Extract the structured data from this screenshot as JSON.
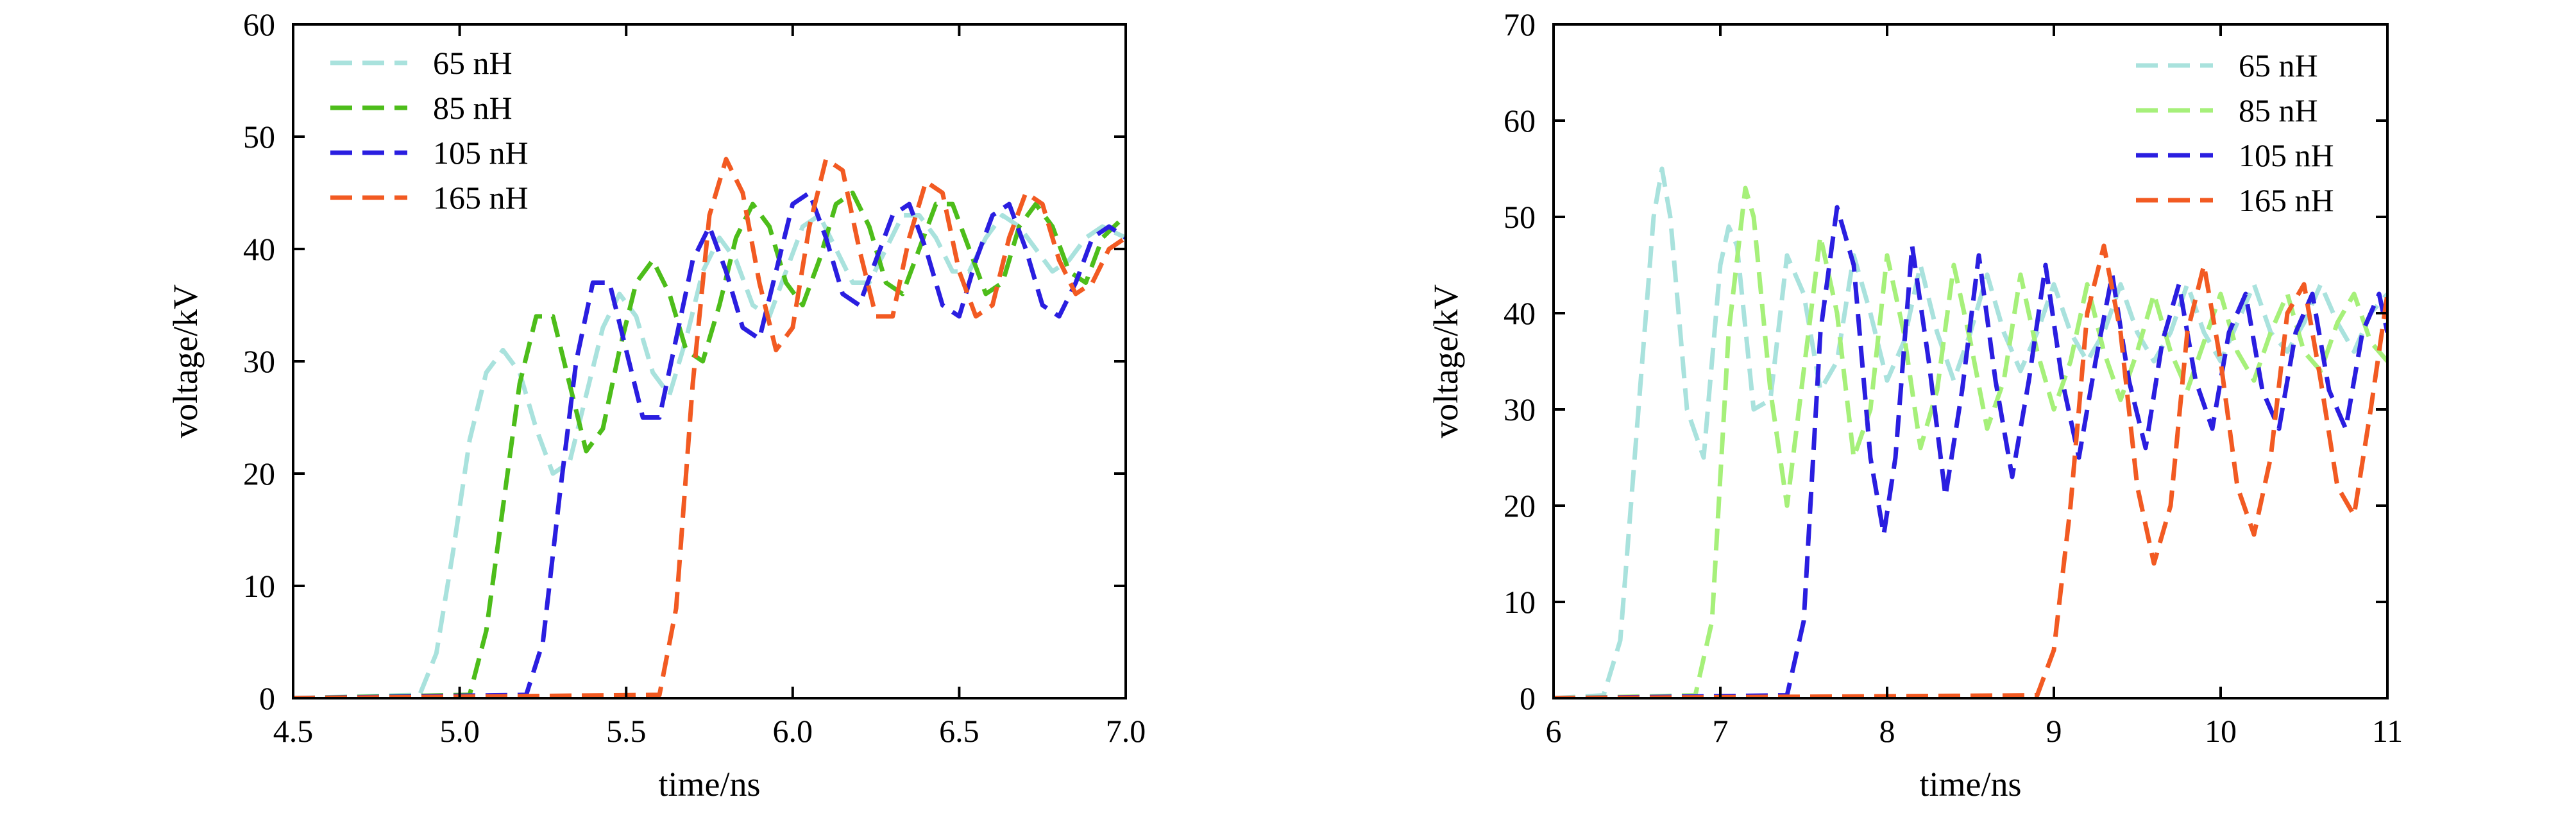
{
  "chart_data": [
    {
      "type": "line",
      "xlabel": "time/ns",
      "ylabel": "voltage/kV",
      "xlim": [
        4.5,
        7.0
      ],
      "ylim": [
        0,
        60
      ],
      "xticks": [
        "4.5",
        "5.0",
        "5.5",
        "6.0",
        "6.5",
        "7.0"
      ],
      "yticks": [
        "0",
        "10",
        "20",
        "30",
        "40",
        "50",
        "60"
      ],
      "legend_position": "top-left",
      "series": [
        {
          "name": "65 nH",
          "color": "#a9e2dd",
          "x": [
            4.5,
            4.88,
            4.93,
            4.98,
            5.03,
            5.08,
            5.13,
            5.18,
            5.23,
            5.28,
            5.33,
            5.38,
            5.43,
            5.48,
            5.53,
            5.58,
            5.63,
            5.68,
            5.73,
            5.78,
            5.83,
            5.88,
            5.93,
            5.98,
            6.03,
            6.08,
            6.13,
            6.18,
            6.23,
            6.28,
            6.33,
            6.38,
            6.43,
            6.48,
            6.53,
            6.58,
            6.63,
            6.68,
            6.73,
            6.78,
            6.83,
            6.88,
            6.93,
            7.0
          ],
          "y": [
            0,
            0.3,
            4,
            13,
            23,
            29,
            31,
            29,
            24,
            20,
            21,
            27,
            33,
            36,
            34,
            29,
            27,
            32,
            38,
            41,
            39,
            35,
            34,
            38,
            42,
            43,
            40,
            37,
            37,
            40,
            43,
            43,
            41,
            38,
            38,
            41,
            43,
            42,
            40,
            38,
            39,
            41,
            42,
            41
          ]
        },
        {
          "name": "85 nH",
          "color": "#4dbd1a",
          "x": [
            4.5,
            5.03,
            5.08,
            5.13,
            5.18,
            5.23,
            5.28,
            5.33,
            5.38,
            5.43,
            5.48,
            5.53,
            5.58,
            5.63,
            5.68,
            5.73,
            5.78,
            5.83,
            5.88,
            5.93,
            5.98,
            6.03,
            6.08,
            6.13,
            6.18,
            6.23,
            6.28,
            6.33,
            6.38,
            6.43,
            6.48,
            6.53,
            6.58,
            6.63,
            6.68,
            6.73,
            6.78,
            6.83,
            6.88,
            6.93,
            7.0
          ],
          "y": [
            0,
            0.3,
            6,
            17,
            28,
            34,
            34,
            28,
            22,
            24,
            31,
            37,
            39,
            36,
            31,
            30,
            35,
            41,
            44,
            42,
            37,
            35,
            39,
            44,
            45,
            42,
            37,
            36,
            40,
            44,
            44,
            40,
            36,
            37,
            42,
            44,
            42,
            38,
            37,
            41,
            43
          ]
        },
        {
          "name": "105 nH",
          "color": "#2a1ee0",
          "x": [
            4.5,
            5.2,
            5.25,
            5.3,
            5.35,
            5.4,
            5.45,
            5.5,
            5.55,
            5.6,
            5.65,
            5.7,
            5.75,
            5.8,
            5.85,
            5.9,
            5.95,
            6.0,
            6.05,
            6.1,
            6.15,
            6.2,
            6.25,
            6.3,
            6.35,
            6.4,
            6.45,
            6.5,
            6.55,
            6.6,
            6.65,
            6.7,
            6.75,
            6.8,
            6.85,
            6.9,
            6.95,
            7.0
          ],
          "y": [
            0,
            0.3,
            5,
            18,
            30,
            37,
            37,
            31,
            25,
            25,
            32,
            39,
            42,
            38,
            33,
            32,
            38,
            44,
            45,
            41,
            36,
            35,
            39,
            43,
            44,
            40,
            35,
            34,
            39,
            43,
            44,
            40,
            35,
            34,
            37,
            41,
            42,
            41
          ]
        },
        {
          "name": "165 nH",
          "color": "#f25a22",
          "x": [
            4.5,
            5.6,
            5.65,
            5.7,
            5.75,
            5.8,
            5.85,
            5.9,
            5.95,
            6.0,
            6.05,
            6.1,
            6.15,
            6.2,
            6.25,
            6.3,
            6.35,
            6.4,
            6.45,
            6.5,
            6.55,
            6.6,
            6.65,
            6.7,
            6.75,
            6.8,
            6.85,
            6.9,
            6.95,
            7.0
          ],
          "y": [
            0,
            0.3,
            8,
            28,
            43,
            48,
            45,
            37,
            31,
            33,
            42,
            48,
            47,
            40,
            34,
            34,
            41,
            46,
            45,
            38,
            34,
            35,
            41,
            45,
            44,
            39,
            36,
            37,
            40,
            41
          ]
        }
      ]
    },
    {
      "type": "line",
      "xlabel": "time/ns",
      "ylabel": "voltage/kV",
      "xlim": [
        6,
        11
      ],
      "ylim": [
        0,
        70
      ],
      "xticks": [
        "6",
        "7",
        "8",
        "9",
        "10",
        "11"
      ],
      "yticks": [
        "0",
        "10",
        "20",
        "30",
        "40",
        "50",
        "60",
        "70"
      ],
      "legend_position": "top-right",
      "series": [
        {
          "name": "65 nH",
          "color": "#a9e2dd",
          "x": [
            6.0,
            6.3,
            6.4,
            6.5,
            6.6,
            6.65,
            6.7,
            6.8,
            6.9,
            7.0,
            7.05,
            7.1,
            7.2,
            7.3,
            7.4,
            7.5,
            7.6,
            7.7,
            7.8,
            7.9,
            8.0,
            8.1,
            8.2,
            8.3,
            8.4,
            8.5,
            8.6,
            8.7,
            8.8,
            8.9,
            9.0,
            9.1,
            9.2,
            9.3,
            9.4,
            9.5,
            9.6,
            9.7,
            9.8,
            9.9,
            10.0,
            10.1,
            10.2,
            10.3,
            10.4,
            10.5,
            10.6,
            10.7,
            10.8,
            10.9,
            11.0
          ],
          "y": [
            0,
            0.3,
            6,
            28,
            50,
            55,
            50,
            30,
            25,
            45,
            49,
            47,
            30,
            31,
            46,
            42,
            32,
            35,
            46,
            40,
            33,
            37,
            45,
            38,
            33,
            38,
            44,
            38,
            34,
            38,
            43,
            38,
            35,
            38,
            43,
            38,
            35,
            38,
            43,
            38,
            35,
            39,
            43,
            38,
            36,
            39,
            43,
            39,
            36,
            40,
            42
          ]
        },
        {
          "name": "85 nH",
          "color": "#a6f07a",
          "x": [
            6.0,
            6.85,
            6.95,
            7.05,
            7.15,
            7.2,
            7.3,
            7.4,
            7.5,
            7.6,
            7.7,
            7.8,
            7.9,
            8.0,
            8.1,
            8.2,
            8.3,
            8.4,
            8.5,
            8.6,
            8.7,
            8.8,
            8.9,
            9.0,
            9.1,
            9.2,
            9.3,
            9.4,
            9.5,
            9.6,
            9.7,
            9.8,
            9.9,
            10.0,
            10.1,
            10.2,
            10.3,
            10.4,
            10.5,
            10.6,
            10.7,
            10.8,
            10.9,
            11.0
          ],
          "y": [
            0,
            0.3,
            8,
            38,
            53,
            50,
            32,
            20,
            34,
            48,
            40,
            25,
            30,
            46,
            38,
            26,
            32,
            45,
            37,
            28,
            33,
            44,
            36,
            30,
            35,
            43,
            36,
            31,
            36,
            42,
            36,
            32,
            37,
            42,
            36,
            33,
            38,
            42,
            36,
            34,
            39,
            42,
            37,
            35
          ]
        },
        {
          "name": "105 nH",
          "color": "#2a1ee0",
          "x": [
            6.0,
            7.4,
            7.5,
            7.6,
            7.7,
            7.8,
            7.9,
            7.98,
            8.05,
            8.15,
            8.25,
            8.35,
            8.45,
            8.55,
            8.65,
            8.75,
            8.85,
            8.95,
            9.05,
            9.15,
            9.25,
            9.35,
            9.45,
            9.55,
            9.65,
            9.75,
            9.85,
            9.95,
            10.05,
            10.15,
            10.25,
            10.35,
            10.45,
            10.55,
            10.65,
            10.75,
            10.85,
            10.95,
            11.0
          ],
          "y": [
            0,
            0.3,
            8,
            38,
            51,
            45,
            25,
            17,
            25,
            47,
            35,
            21,
            32,
            46,
            33,
            23,
            33,
            45,
            33,
            25,
            35,
            44,
            33,
            26,
            37,
            43,
            33,
            28,
            38,
            42,
            32,
            28,
            38,
            42,
            32,
            28,
            38,
            42,
            38
          ]
        },
        {
          "name": "165 nH",
          "color": "#f25a22",
          "x": [
            6.0,
            8.9,
            9.0,
            9.1,
            9.2,
            9.3,
            9.4,
            9.5,
            9.6,
            9.7,
            9.8,
            9.9,
            10.0,
            10.1,
            10.2,
            10.3,
            10.4,
            10.5,
            10.6,
            10.7,
            10.8,
            10.9,
            11.0
          ],
          "y": [
            0,
            0.3,
            5,
            20,
            40,
            47,
            38,
            22,
            14,
            20,
            38,
            45,
            35,
            22,
            17,
            25,
            40,
            43,
            33,
            22,
            19,
            30,
            42
          ]
        }
      ]
    }
  ]
}
